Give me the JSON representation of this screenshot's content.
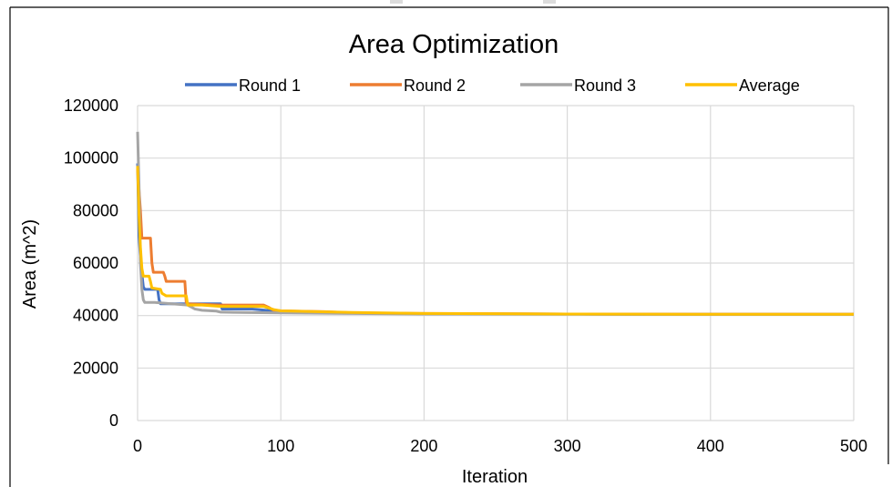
{
  "chart_data": {
    "type": "line",
    "title": "Area Optimization",
    "xlabel": "Iteration",
    "ylabel": "Area (m^2)",
    "xlim": [
      0,
      500
    ],
    "ylim": [
      0,
      120000
    ],
    "x_ticks": [
      "0",
      "100",
      "200",
      "300",
      "400",
      "500"
    ],
    "y_ticks": [
      "0",
      "20000",
      "40000",
      "60000",
      "80000",
      "100000",
      "120000"
    ],
    "x_tick_values": [
      0,
      100,
      200,
      300,
      400,
      500
    ],
    "y_tick_values": [
      0,
      20000,
      40000,
      60000,
      80000,
      100000,
      120000
    ],
    "grid": true,
    "legend_position": "top",
    "series": [
      {
        "name": "Round 1",
        "color": "#4472C4",
        "points": [
          [
            0,
            98000
          ],
          [
            1,
            70000
          ],
          [
            2,
            62000
          ],
          [
            3,
            56000
          ],
          [
            4,
            51000
          ],
          [
            5,
            50000
          ],
          [
            14,
            50000
          ],
          [
            15,
            46000
          ],
          [
            16,
            44500
          ],
          [
            35,
            44500
          ],
          [
            36,
            44500
          ],
          [
            58,
            44500
          ],
          [
            59,
            42500
          ],
          [
            80,
            42500
          ],
          [
            100,
            41500
          ],
          [
            120,
            41500
          ],
          [
            150,
            41000
          ],
          [
            200,
            40700
          ],
          [
            300,
            40600
          ],
          [
            350,
            40500
          ],
          [
            400,
            40500
          ],
          [
            500,
            40500
          ]
        ]
      },
      {
        "name": "Round 2",
        "color": "#ED7D31",
        "points": [
          [
            0,
            96000
          ],
          [
            2,
            80000
          ],
          [
            3,
            69500
          ],
          [
            9,
            69500
          ],
          [
            10,
            60000
          ],
          [
            11,
            56500
          ],
          [
            18,
            56500
          ],
          [
            19,
            55000
          ],
          [
            20,
            53000
          ],
          [
            33,
            53000
          ],
          [
            34,
            44500
          ],
          [
            58,
            44000
          ],
          [
            88,
            44000
          ],
          [
            92,
            43000
          ],
          [
            95,
            42000
          ],
          [
            100,
            41800
          ],
          [
            130,
            41500
          ],
          [
            150,
            41000
          ],
          [
            200,
            40800
          ],
          [
            300,
            40600
          ],
          [
            400,
            40500
          ],
          [
            500,
            40500
          ]
        ]
      },
      {
        "name": "Round 3",
        "color": "#A5A5A5",
        "points": [
          [
            0,
            110000
          ],
          [
            1,
            90000
          ],
          [
            2,
            60000
          ],
          [
            3,
            50000
          ],
          [
            4,
            46000
          ],
          [
            5,
            45000
          ],
          [
            11,
            45000
          ],
          [
            12,
            45000
          ],
          [
            35,
            44000
          ],
          [
            40,
            42500
          ],
          [
            45,
            42000
          ],
          [
            55,
            41700
          ],
          [
            58,
            41300
          ],
          [
            100,
            41000
          ],
          [
            150,
            40800
          ],
          [
            200,
            40600
          ],
          [
            300,
            40500
          ],
          [
            400,
            40400
          ],
          [
            500,
            40400
          ]
        ]
      },
      {
        "name": "Average",
        "color": "#FFC000",
        "points": [
          [
            0,
            97000
          ],
          [
            1,
            78000
          ],
          [
            2,
            66000
          ],
          [
            3,
            58000
          ],
          [
            4,
            55000
          ],
          [
            8,
            55000
          ],
          [
            9,
            53000
          ],
          [
            10,
            50500
          ],
          [
            16,
            50000
          ],
          [
            17,
            48500
          ],
          [
            20,
            47500
          ],
          [
            34,
            47500
          ],
          [
            35,
            44000
          ],
          [
            45,
            44000
          ],
          [
            58,
            43500
          ],
          [
            88,
            43500
          ],
          [
            95,
            42300
          ],
          [
            100,
            41800
          ],
          [
            150,
            41200
          ],
          [
            200,
            40800
          ],
          [
            300,
            40600
          ],
          [
            400,
            40500
          ],
          [
            500,
            40500
          ]
        ]
      }
    ]
  }
}
